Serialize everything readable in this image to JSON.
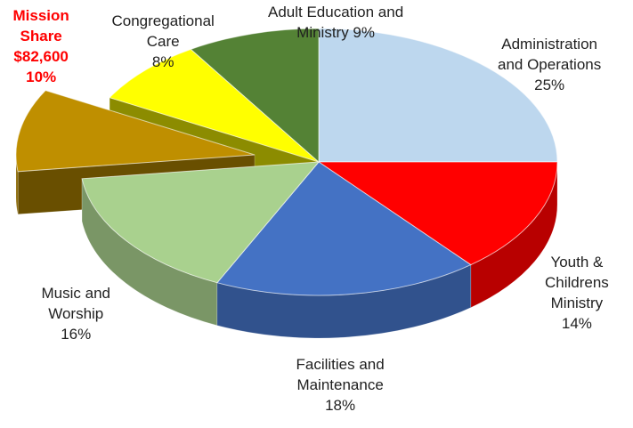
{
  "chart_data": {
    "type": "pie",
    "style": "3d-exploded",
    "slices": [
      {
        "name": "Administration and Operations",
        "value": 25,
        "color": "#bdd7ee",
        "label_lines": [
          "Administration",
          "and Operations",
          "25%"
        ]
      },
      {
        "name": "Youth & Childrens Ministry",
        "value": 14,
        "color": "#ff0000",
        "label_lines": [
          "Youth &",
          "Childrens",
          "Ministry",
          "14%"
        ]
      },
      {
        "name": "Facilities and Maintenance",
        "value": 18,
        "color": "#4472c4",
        "label_lines": [
          "Facilities and",
          "Maintenance",
          "18%"
        ]
      },
      {
        "name": "Music and Worship",
        "value": 16,
        "color": "#a9d18e",
        "label_lines": [
          "Music and",
          "Worship",
          "16%"
        ]
      },
      {
        "name": "Mission Share",
        "value": 10,
        "color": "#bf8f00",
        "exploded": true,
        "highlight": true,
        "label_lines": [
          "Mission",
          "Share",
          "$82,600",
          "10%"
        ]
      },
      {
        "name": "Congregational Care",
        "value": 8,
        "color": "#ffff00",
        "label_lines": [
          "Congregational",
          "Care",
          "8%"
        ]
      },
      {
        "name": "Adult Education and Ministry",
        "value": 9,
        "color": "#548235",
        "label_lines": [
          "Adult Education and",
          "Ministry 9%"
        ]
      }
    ]
  }
}
